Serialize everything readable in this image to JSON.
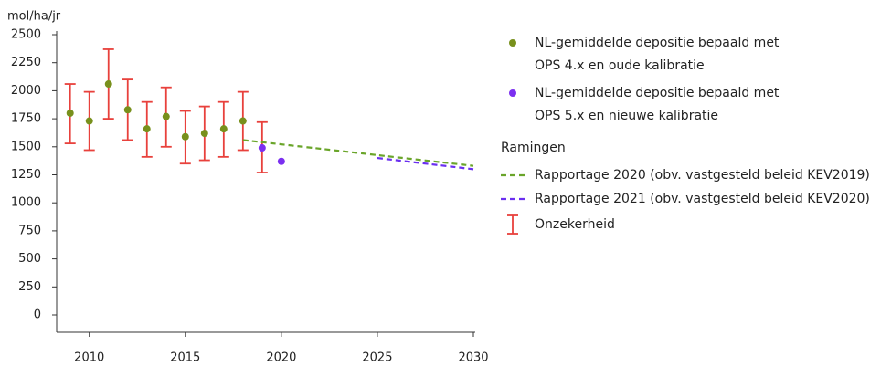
{
  "chart_data": {
    "type": "scatter",
    "ylabel": "mol/ha/jr",
    "xlim": [
      2008.3,
      2030
    ],
    "ylim": [
      0,
      2500
    ],
    "xticks": [
      2010,
      2015,
      2020,
      2025,
      2030
    ],
    "yticks": [
      0,
      250,
      500,
      750,
      1000,
      1250,
      1500,
      1750,
      2000,
      2250,
      2500
    ],
    "legend_title": "Ramingen",
    "error_label": "Onzekerheid",
    "error_color": "#e8413c",
    "series": [
      {
        "name": "NL-gemiddelde depositie bepaald met\nOPS 4.x en oude kalibratie",
        "color": "#78901c",
        "style": "points",
        "x": [
          2009,
          2010,
          2011,
          2012,
          2013,
          2014,
          2015,
          2016,
          2017,
          2018
        ],
        "values": [
          1800,
          1730,
          2060,
          1830,
          1660,
          1770,
          1590,
          1620,
          1660,
          1730
        ],
        "lower": [
          1530,
          1470,
          1750,
          1560,
          1410,
          1500,
          1350,
          1380,
          1410,
          1470
        ],
        "upper": [
          2060,
          1990,
          2370,
          2100,
          1900,
          2030,
          1820,
          1860,
          1900,
          1990
        ]
      },
      {
        "name": "NL-gemiddelde depositie bepaald met\nOPS 5.x en nieuwe kalibratie",
        "color": "#7b2ff0",
        "style": "points",
        "x": [
          2019,
          2020
        ],
        "values": [
          1490,
          1370
        ],
        "lower": [
          1270,
          null
        ],
        "upper": [
          1720,
          null
        ]
      },
      {
        "name": "Rapportage 2020 (obv. vastgesteld beleid KEV2019)",
        "color": "#6aa52a",
        "style": "dashed",
        "x": [
          2018,
          2030
        ],
        "values": [
          1560,
          1330
        ]
      },
      {
        "name": "Rapportage 2021 (obv. vastgesteld beleid KEV2020)",
        "color": "#6a2ff0",
        "style": "dashed",
        "x": [
          2025,
          2030
        ],
        "values": [
          1400,
          1300
        ]
      }
    ]
  }
}
